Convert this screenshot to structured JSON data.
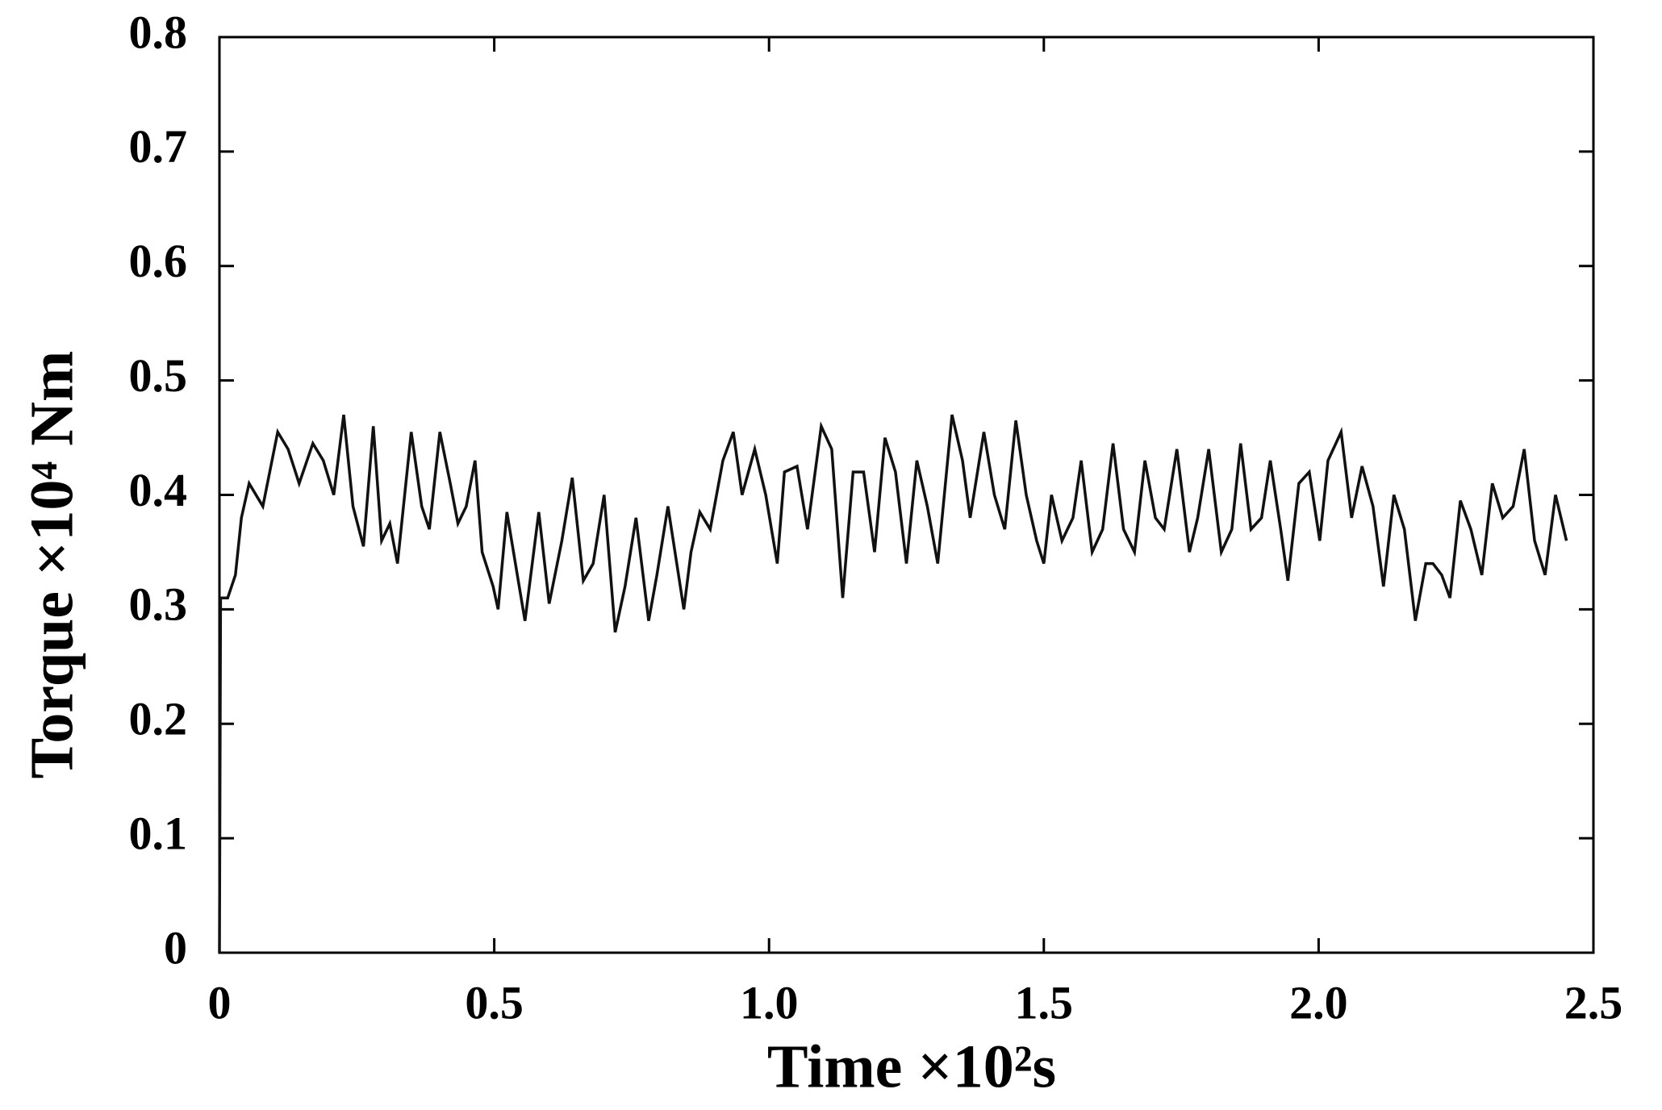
{
  "chart_data": {
    "type": "line",
    "x_label": "Time ×10²s",
    "y_label": "Torque ×10⁴ Nm",
    "xlim": [
      0,
      2.5
    ],
    "ylim": [
      0,
      0.8
    ],
    "xticks": [
      0,
      0.5,
      {
        "value": 1,
        "label": "1.0"
      },
      1.5,
      {
        "value": 2,
        "label": "2.0"
      },
      2.5
    ],
    "yticks": [
      0,
      0.1,
      0.2,
      0.3,
      0.4,
      0.5,
      0.6,
      0.7,
      0.8
    ],
    "series": [
      {
        "color": "#111111",
        "x": [
          0,
          0.002,
          0.015,
          0.029,
          0.04,
          0.054,
          0.079,
          0.106,
          0.125,
          0.145,
          0.17,
          0.189,
          0.208,
          0.226,
          0.243,
          0.262,
          0.28,
          0.295,
          0.31,
          0.324,
          0.349,
          0.368,
          0.382,
          0.401,
          0.42,
          0.434,
          0.449,
          0.465,
          0.478,
          0.498,
          0.507,
          0.523,
          0.542,
          0.556,
          0.581,
          0.6,
          0.623,
          0.642,
          0.662,
          0.68,
          0.7,
          0.72,
          0.738,
          0.758,
          0.781,
          0.796,
          0.816,
          0.845,
          0.858,
          0.874,
          0.893,
          0.916,
          0.935,
          0.951,
          0.974,
          0.994,
          1.015,
          1.028,
          1.051,
          1.07,
          1.095,
          1.114,
          1.134,
          1.153,
          1.172,
          1.192,
          1.211,
          1.23,
          1.25,
          1.269,
          1.288,
          1.307,
          1.333,
          1.352,
          1.366,
          1.391,
          1.41,
          1.429,
          1.449,
          1.468,
          1.487,
          1.5,
          1.514,
          1.533,
          1.553,
          1.568,
          1.588,
          1.607,
          1.626,
          1.645,
          1.665,
          1.684,
          1.703,
          1.719,
          1.742,
          1.765,
          1.78,
          1.8,
          1.823,
          1.842,
          1.858,
          1.877,
          1.896,
          1.912,
          1.931,
          1.944,
          1.964,
          1.983,
          2.002,
          2.017,
          2.041,
          2.06,
          2.079,
          2.099,
          2.118,
          2.137,
          2.156,
          2.176,
          2.195,
          2.208,
          2.224,
          2.239,
          2.258,
          2.277,
          2.297,
          2.316,
          2.335,
          2.354,
          2.374,
          2.393,
          2.412,
          2.431,
          2.451
        ],
        "values": [
          0,
          0.31,
          0.31,
          0.33,
          0.38,
          0.41,
          0.39,
          0.455,
          0.44,
          0.41,
          0.445,
          0.43,
          0.4,
          0.47,
          0.39,
          0.355,
          0.46,
          0.36,
          0.375,
          0.34,
          0.455,
          0.39,
          0.37,
          0.455,
          0.41,
          0.375,
          0.39,
          0.43,
          0.35,
          0.32,
          0.3,
          0.385,
          0.33,
          0.29,
          0.385,
          0.305,
          0.36,
          0.415,
          0.325,
          0.34,
          0.4,
          0.28,
          0.32,
          0.38,
          0.29,
          0.33,
          0.39,
          0.3,
          0.35,
          0.385,
          0.37,
          0.43,
          0.455,
          0.4,
          0.44,
          0.4,
          0.34,
          0.42,
          0.425,
          0.37,
          0.46,
          0.44,
          0.31,
          0.42,
          0.42,
          0.35,
          0.45,
          0.42,
          0.34,
          0.43,
          0.39,
          0.34,
          0.47,
          0.43,
          0.38,
          0.455,
          0.4,
          0.37,
          0.465,
          0.4,
          0.36,
          0.34,
          0.4,
          0.36,
          0.38,
          0.43,
          0.35,
          0.37,
          0.445,
          0.37,
          0.35,
          0.43,
          0.38,
          0.37,
          0.44,
          0.35,
          0.38,
          0.44,
          0.35,
          0.37,
          0.445,
          0.37,
          0.38,
          0.43,
          0.37,
          0.325,
          0.41,
          0.42,
          0.36,
          0.43,
          0.455,
          0.38,
          0.425,
          0.39,
          0.32,
          0.4,
          0.37,
          0.29,
          0.34,
          0.34,
          0.33,
          0.31,
          0.395,
          0.37,
          0.33,
          0.41,
          0.38,
          0.39,
          0.44,
          0.36,
          0.33,
          0.4,
          0.36
        ]
      }
    ]
  }
}
